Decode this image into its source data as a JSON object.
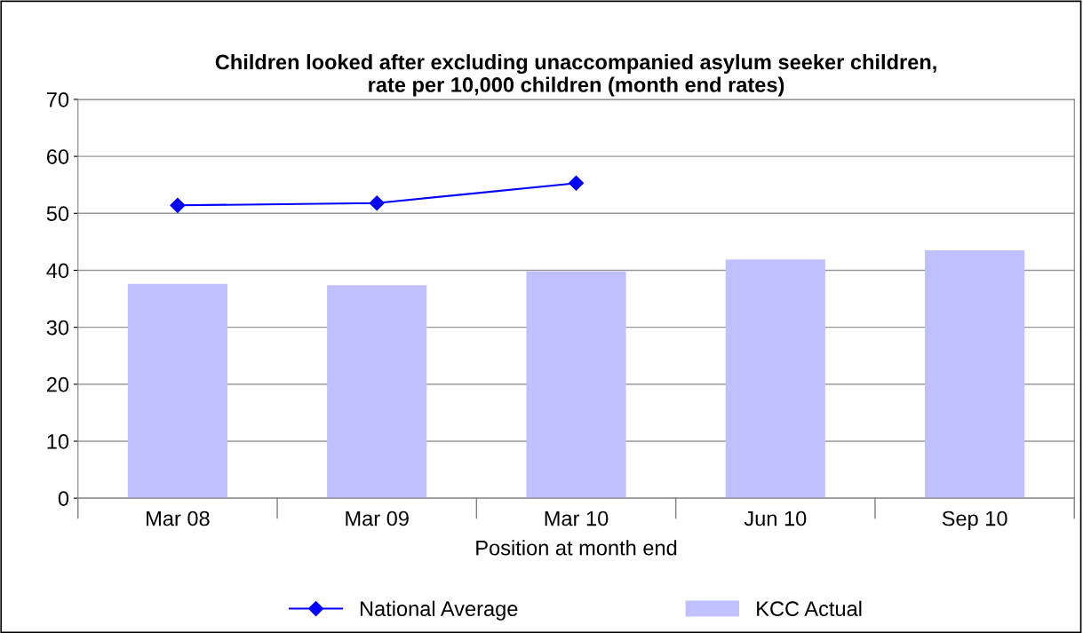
{
  "chart_data": {
    "type": "bar",
    "title": "Children looked after excluding unaccompanied asylum seeker children,\nrate per 10,000 children (month end rates)",
    "xlabel": "Position at month end",
    "categories": [
      "Mar 08",
      "Mar 09",
      "Mar 10",
      "Jun 10",
      "Sep 10"
    ],
    "series": [
      {
        "name": "National Average",
        "type": "line",
        "color": "#0000ff",
        "marker": "diamond",
        "values": [
          51.4,
          51.8,
          55.3,
          null,
          null
        ]
      },
      {
        "name": "KCC Actual",
        "color": "#c0c0ff",
        "values": [
          37.6,
          37.4,
          39.8,
          41.9,
          43.5
        ]
      }
    ],
    "ylim": [
      0,
      70
    ],
    "yticks": [
      0,
      10,
      20,
      30,
      40,
      50,
      60,
      70
    ],
    "grid": "y",
    "legend": "bottom"
  }
}
